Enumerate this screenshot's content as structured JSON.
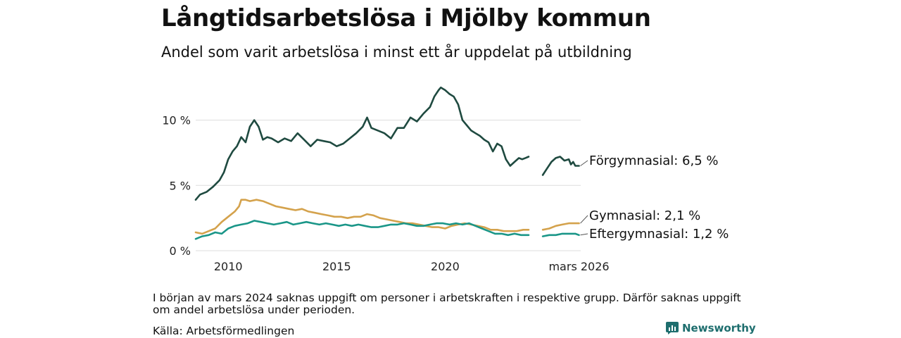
{
  "header": {
    "title": "Långtidsarbetslösa i Mjölby kommun",
    "subtitle": "Andel som varit arbetslösa i minst ett år uppdelat på utbildning"
  },
  "footer": {
    "note": "I början av mars 2024 saknas uppgift om personer i arbetskraften i respektive grupp. Därför saknas uppgift om andel arbetslösa under perioden.",
    "source": "Källa: Arbetsförmedlingen",
    "brand": "Newsworthy"
  },
  "colors": {
    "forgymnasial": "#1f4a40",
    "gymnasial": "#d4a24c",
    "eftergymnasial": "#1a9688",
    "grid": "#dddddd"
  },
  "chart_data": {
    "type": "line",
    "title": "Långtidsarbetslösa i Mjölby kommun",
    "subtitle": "Andel som varit arbetslösa i minst ett år uppdelat på utbildning",
    "xlabel": "",
    "ylabel": "",
    "xlim": [
      2008.5,
      2026.25
    ],
    "ylim": [
      0,
      13
    ],
    "x_ticks": [
      {
        "value": 2010,
        "label": "2010"
      },
      {
        "value": 2015,
        "label": "2015"
      },
      {
        "value": 2020,
        "label": "2020"
      },
      {
        "value": 2026.17,
        "label": "mars 2026"
      }
    ],
    "y_ticks": [
      {
        "value": 0,
        "label": "0 %"
      },
      {
        "value": 5,
        "label": "5 %"
      },
      {
        "value": 10,
        "label": "10 %"
      }
    ],
    "gap": [
      2024.1,
      2024.3
    ],
    "series": [
      {
        "name": "Förgymnasial",
        "end_label": "Förgymnasial: 6,5 %",
        "color_key": "forgymnasial",
        "points": [
          [
            2008.5,
            3.9
          ],
          [
            2008.7,
            4.3
          ],
          [
            2009.0,
            4.5
          ],
          [
            2009.3,
            4.9
          ],
          [
            2009.6,
            5.4
          ],
          [
            2009.8,
            6.0
          ],
          [
            2010.0,
            7.0
          ],
          [
            2010.2,
            7.6
          ],
          [
            2010.4,
            8.0
          ],
          [
            2010.6,
            8.7
          ],
          [
            2010.8,
            8.3
          ],
          [
            2011.0,
            9.5
          ],
          [
            2011.2,
            10.0
          ],
          [
            2011.4,
            9.5
          ],
          [
            2011.6,
            8.5
          ],
          [
            2011.8,
            8.7
          ],
          [
            2012.0,
            8.6
          ],
          [
            2012.3,
            8.3
          ],
          [
            2012.6,
            8.6
          ],
          [
            2012.9,
            8.4
          ],
          [
            2013.2,
            9.0
          ],
          [
            2013.5,
            8.5
          ],
          [
            2013.8,
            8.0
          ],
          [
            2014.1,
            8.5
          ],
          [
            2014.4,
            8.4
          ],
          [
            2014.7,
            8.3
          ],
          [
            2015.0,
            8.0
          ],
          [
            2015.3,
            8.2
          ],
          [
            2015.6,
            8.6
          ],
          [
            2015.9,
            9.0
          ],
          [
            2016.2,
            9.5
          ],
          [
            2016.4,
            10.2
          ],
          [
            2016.6,
            9.4
          ],
          [
            2016.9,
            9.2
          ],
          [
            2017.2,
            9.0
          ],
          [
            2017.5,
            8.6
          ],
          [
            2017.8,
            9.4
          ],
          [
            2018.1,
            9.4
          ],
          [
            2018.4,
            10.2
          ],
          [
            2018.7,
            9.9
          ],
          [
            2019.0,
            10.5
          ],
          [
            2019.3,
            11.0
          ],
          [
            2019.5,
            11.8
          ],
          [
            2019.7,
            12.3
          ],
          [
            2019.8,
            12.5
          ],
          [
            2020.0,
            12.3
          ],
          [
            2020.2,
            12.0
          ],
          [
            2020.4,
            11.8
          ],
          [
            2020.6,
            11.2
          ],
          [
            2020.8,
            10.0
          ],
          [
            2021.0,
            9.6
          ],
          [
            2021.2,
            9.2
          ],
          [
            2021.4,
            9.0
          ],
          [
            2021.6,
            8.8
          ],
          [
            2021.8,
            8.5
          ],
          [
            2022.0,
            8.3
          ],
          [
            2022.2,
            7.6
          ],
          [
            2022.4,
            8.2
          ],
          [
            2022.6,
            8.0
          ],
          [
            2022.8,
            7.0
          ],
          [
            2023.0,
            6.5
          ],
          [
            2023.2,
            6.8
          ],
          [
            2023.4,
            7.1
          ],
          [
            2023.55,
            7.0
          ],
          [
            2023.7,
            7.1
          ],
          [
            2023.85,
            7.2
          ]
        ],
        "points_after_gap": [
          [
            2024.5,
            5.8
          ],
          [
            2024.7,
            6.3
          ],
          [
            2024.9,
            6.8
          ],
          [
            2025.1,
            7.1
          ],
          [
            2025.3,
            7.2
          ],
          [
            2025.5,
            6.9
          ],
          [
            2025.7,
            7.0
          ],
          [
            2025.8,
            6.6
          ],
          [
            2025.9,
            6.8
          ],
          [
            2026.0,
            6.5
          ],
          [
            2026.17,
            6.5
          ]
        ]
      },
      {
        "name": "Gymnasial",
        "end_label": "Gymnasial: 2,1 %",
        "color_key": "gymnasial",
        "points": [
          [
            2008.5,
            1.4
          ],
          [
            2008.8,
            1.3
          ],
          [
            2009.1,
            1.5
          ],
          [
            2009.4,
            1.7
          ],
          [
            2009.7,
            2.2
          ],
          [
            2010.0,
            2.6
          ],
          [
            2010.3,
            3.0
          ],
          [
            2010.5,
            3.4
          ],
          [
            2010.6,
            3.9
          ],
          [
            2010.8,
            3.9
          ],
          [
            2011.0,
            3.8
          ],
          [
            2011.3,
            3.9
          ],
          [
            2011.6,
            3.8
          ],
          [
            2011.9,
            3.6
          ],
          [
            2012.2,
            3.4
          ],
          [
            2012.5,
            3.3
          ],
          [
            2012.8,
            3.2
          ],
          [
            2013.1,
            3.1
          ],
          [
            2013.4,
            3.2
          ],
          [
            2013.7,
            3.0
          ],
          [
            2014.0,
            2.9
          ],
          [
            2014.3,
            2.8
          ],
          [
            2014.6,
            2.7
          ],
          [
            2014.9,
            2.6
          ],
          [
            2015.2,
            2.6
          ],
          [
            2015.5,
            2.5
          ],
          [
            2015.8,
            2.6
          ],
          [
            2016.1,
            2.6
          ],
          [
            2016.4,
            2.8
          ],
          [
            2016.7,
            2.7
          ],
          [
            2017.0,
            2.5
          ],
          [
            2017.3,
            2.4
          ],
          [
            2017.6,
            2.3
          ],
          [
            2017.9,
            2.2
          ],
          [
            2018.2,
            2.1
          ],
          [
            2018.5,
            2.1
          ],
          [
            2018.8,
            2.0
          ],
          [
            2019.1,
            1.9
          ],
          [
            2019.4,
            1.8
          ],
          [
            2019.7,
            1.8
          ],
          [
            2020.0,
            1.7
          ],
          [
            2020.3,
            1.9
          ],
          [
            2020.6,
            2.0
          ],
          [
            2020.9,
            2.1
          ],
          [
            2021.2,
            2.0
          ],
          [
            2021.5,
            1.9
          ],
          [
            2021.8,
            1.8
          ],
          [
            2022.1,
            1.6
          ],
          [
            2022.4,
            1.6
          ],
          [
            2022.7,
            1.5
          ],
          [
            2023.0,
            1.5
          ],
          [
            2023.3,
            1.5
          ],
          [
            2023.6,
            1.6
          ],
          [
            2023.85,
            1.6
          ]
        ],
        "points_after_gap": [
          [
            2024.5,
            1.6
          ],
          [
            2024.8,
            1.7
          ],
          [
            2025.1,
            1.9
          ],
          [
            2025.4,
            2.0
          ],
          [
            2025.7,
            2.1
          ],
          [
            2026.0,
            2.1
          ],
          [
            2026.17,
            2.1
          ]
        ]
      },
      {
        "name": "Eftergymnasial",
        "end_label": "Eftergymnasial: 1,2 %",
        "color_key": "eftergymnasial",
        "points": [
          [
            2008.5,
            0.9
          ],
          [
            2008.8,
            1.1
          ],
          [
            2009.1,
            1.2
          ],
          [
            2009.4,
            1.4
          ],
          [
            2009.7,
            1.3
          ],
          [
            2010.0,
            1.7
          ],
          [
            2010.3,
            1.9
          ],
          [
            2010.6,
            2.0
          ],
          [
            2010.9,
            2.1
          ],
          [
            2011.2,
            2.3
          ],
          [
            2011.5,
            2.2
          ],
          [
            2011.8,
            2.1
          ],
          [
            2012.1,
            2.0
          ],
          [
            2012.4,
            2.1
          ],
          [
            2012.7,
            2.2
          ],
          [
            2013.0,
            2.0
          ],
          [
            2013.3,
            2.1
          ],
          [
            2013.6,
            2.2
          ],
          [
            2013.9,
            2.1
          ],
          [
            2014.2,
            2.0
          ],
          [
            2014.5,
            2.1
          ],
          [
            2014.8,
            2.0
          ],
          [
            2015.1,
            1.9
          ],
          [
            2015.4,
            2.0
          ],
          [
            2015.7,
            1.9
          ],
          [
            2016.0,
            2.0
          ],
          [
            2016.3,
            1.9
          ],
          [
            2016.6,
            1.8
          ],
          [
            2016.9,
            1.8
          ],
          [
            2017.2,
            1.9
          ],
          [
            2017.5,
            2.0
          ],
          [
            2017.8,
            2.0
          ],
          [
            2018.1,
            2.1
          ],
          [
            2018.4,
            2.0
          ],
          [
            2018.7,
            1.9
          ],
          [
            2019.0,
            1.9
          ],
          [
            2019.3,
            2.0
          ],
          [
            2019.6,
            2.1
          ],
          [
            2019.9,
            2.1
          ],
          [
            2020.2,
            2.0
          ],
          [
            2020.5,
            2.1
          ],
          [
            2020.8,
            2.0
          ],
          [
            2021.1,
            2.1
          ],
          [
            2021.4,
            1.9
          ],
          [
            2021.7,
            1.7
          ],
          [
            2022.0,
            1.5
          ],
          [
            2022.3,
            1.3
          ],
          [
            2022.6,
            1.3
          ],
          [
            2022.9,
            1.2
          ],
          [
            2023.2,
            1.3
          ],
          [
            2023.5,
            1.2
          ],
          [
            2023.85,
            1.2
          ]
        ],
        "points_after_gap": [
          [
            2024.5,
            1.1
          ],
          [
            2024.8,
            1.2
          ],
          [
            2025.1,
            1.2
          ],
          [
            2025.4,
            1.3
          ],
          [
            2025.7,
            1.3
          ],
          [
            2026.0,
            1.3
          ],
          [
            2026.17,
            1.2
          ]
        ]
      }
    ]
  }
}
